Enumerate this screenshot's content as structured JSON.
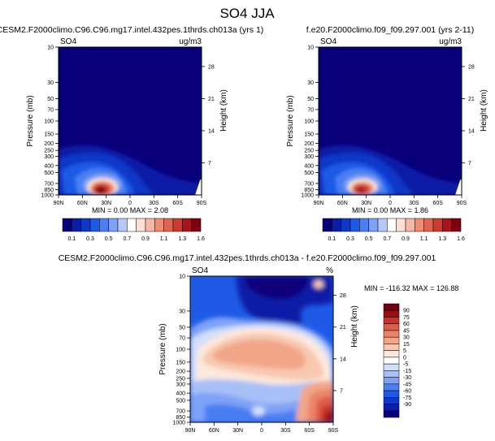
{
  "page_title": "SO4 JJA",
  "colors": {
    "abs_scale": [
      "#08007a",
      "#0a1fa6",
      "#1038c8",
      "#1e5ae6",
      "#4a7ef2",
      "#7ea2f7",
      "#b4c8fb",
      "#ffffff",
      "#fde0d2",
      "#f6b8a2",
      "#ee8d74",
      "#e06450",
      "#cc3c30",
      "#a8141c",
      "#7a0010"
    ],
    "diff_scale": [
      "#08007a",
      "#0a1fa6",
      "#1038c8",
      "#1e5ae6",
      "#4a7ef2",
      "#7ea2f7",
      "#a8c0f8",
      "#d0defc",
      "#ffffff",
      "#fde8dc",
      "#f8c8b0",
      "#f2a688",
      "#ea8468",
      "#de5c48",
      "#c83228",
      "#9c0c14",
      "#700010"
    ]
  },
  "chart_data": [
    {
      "type": "heatmap",
      "title": "CESM2.F2000climo.C96.C96.mg17.intel.432pes.1thrds.ch013a (yrs 1)",
      "variable": "SO4",
      "units": "ug/m3",
      "xlabel": "",
      "ylabel": "Pressure (mb)",
      "y2label": "Height (km)",
      "x_ticks": [
        "90N",
        "60N",
        "30N",
        "0",
        "30S",
        "60S",
        "90S"
      ],
      "x_range": [
        90,
        -90
      ],
      "y_ticks": [
        10,
        30,
        50,
        70,
        100,
        150,
        200,
        250,
        300,
        400,
        500,
        700,
        850,
        1000
      ],
      "y_range": [
        10,
        1000
      ],
      "y_scale": "log",
      "y2_ticks": [
        7,
        14,
        21,
        28
      ],
      "min": 0.0,
      "max": 2.08,
      "summary_text": "MIN = 0.00  MAX = 2.08",
      "colorbar_labels": [
        "0.1",
        "0.3",
        "0.5",
        "0.7",
        "0.9",
        "1.1",
        "1.3",
        "1.6"
      ]
    },
    {
      "type": "heatmap",
      "title": "f.e20.F2000climo.f09_f09.297.001 (yrs 2-11)",
      "variable": "SO4",
      "units": "ug/m3",
      "xlabel": "",
      "ylabel": "Pressure (mb)",
      "y2label": "Height (km)",
      "x_ticks": [
        "90N",
        "60N",
        "30N",
        "0",
        "30S",
        "60S",
        "90S"
      ],
      "x_range": [
        90,
        -90
      ],
      "y_ticks": [
        10,
        30,
        50,
        70,
        100,
        150,
        200,
        250,
        300,
        400,
        500,
        700,
        850,
        1000
      ],
      "y_range": [
        10,
        1000
      ],
      "y_scale": "log",
      "y2_ticks": [
        7,
        14,
        21,
        28
      ],
      "min": 0.0,
      "max": 1.86,
      "summary_text": "MIN = 0.00  MAX = 1.86",
      "colorbar_labels": [
        "0.1",
        "0.3",
        "0.5",
        "0.7",
        "0.9",
        "1.1",
        "1.3",
        "1.6"
      ]
    },
    {
      "type": "heatmap",
      "title": "CESM2.F2000climo.C96.C96.mg17.intel.432pes.1thrds.ch013a - f.e20.F2000climo.f09_f09.297.001",
      "variable": "SO4",
      "units": "%",
      "xlabel": "",
      "ylabel": "Pressure (mb)",
      "y2label": "Height (km)",
      "x_ticks": [
        "90N",
        "60N",
        "30N",
        "0",
        "30S",
        "60S",
        "90S"
      ],
      "x_range": [
        90,
        -90
      ],
      "y_ticks": [
        10,
        30,
        50,
        70,
        100,
        150,
        200,
        250,
        300,
        400,
        500,
        700,
        850,
        1000
      ],
      "y_range": [
        10,
        1000
      ],
      "y_scale": "log",
      "y2_ticks": [
        7,
        14,
        21,
        28
      ],
      "min": -116.32,
      "max": 126.88,
      "summary_text": "MIN = -116.32  MAX = 126.88",
      "colorbar_labels": [
        "90",
        "75",
        "60",
        "45",
        "30",
        "15",
        "5",
        "0",
        "-5",
        "-15",
        "-30",
        "-45",
        "-60",
        "-75",
        "-90"
      ]
    }
  ]
}
